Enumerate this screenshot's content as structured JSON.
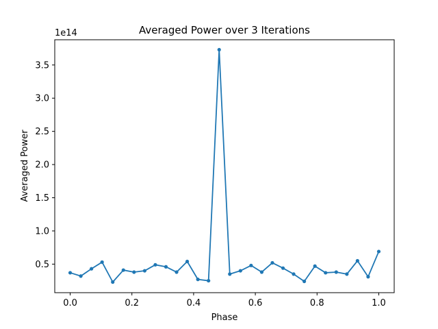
{
  "chart_data": {
    "type": "line",
    "title": "Averaged Power over 3 Iterations",
    "xlabel": "Phase",
    "ylabel": "Averaged Power",
    "y_offset_label": "1e14",
    "xlim": [
      -0.05,
      1.05
    ],
    "ylim": [
      0.07,
      3.88
    ],
    "x_ticks": [
      0.0,
      0.2,
      0.4,
      0.6,
      0.8,
      1.0
    ],
    "x_tick_labels": [
      "0.0",
      "0.2",
      "0.4",
      "0.6",
      "0.8",
      "1.0"
    ],
    "y_ticks": [
      0.5,
      1.0,
      1.5,
      2.0,
      2.5,
      3.0,
      3.5
    ],
    "y_tick_labels": [
      "0.5",
      "1.0",
      "1.5",
      "2.0",
      "2.5",
      "3.0",
      "3.5"
    ],
    "grid": false,
    "color": "#1f77b4",
    "series": [
      {
        "x": [
          0.0,
          0.0345,
          0.069,
          0.1034,
          0.1379,
          0.1724,
          0.2069,
          0.2414,
          0.2759,
          0.3103,
          0.3448,
          0.3793,
          0.4138,
          0.4483,
          0.4828,
          0.5172,
          0.5517,
          0.5862,
          0.6207,
          0.6552,
          0.6897,
          0.7241,
          0.7586,
          0.7931,
          0.8276,
          0.8621,
          0.8966,
          0.931,
          0.9655,
          1.0
        ],
        "y": [
          0.37,
          0.32,
          0.43,
          0.53,
          0.23,
          0.41,
          0.38,
          0.4,
          0.49,
          0.46,
          0.38,
          0.54,
          0.27,
          0.25,
          3.73,
          0.35,
          0.4,
          0.48,
          0.38,
          0.52,
          0.44,
          0.35,
          0.24,
          0.47,
          0.37,
          0.38,
          0.35,
          0.55,
          0.31,
          0.69
        ]
      }
    ]
  }
}
